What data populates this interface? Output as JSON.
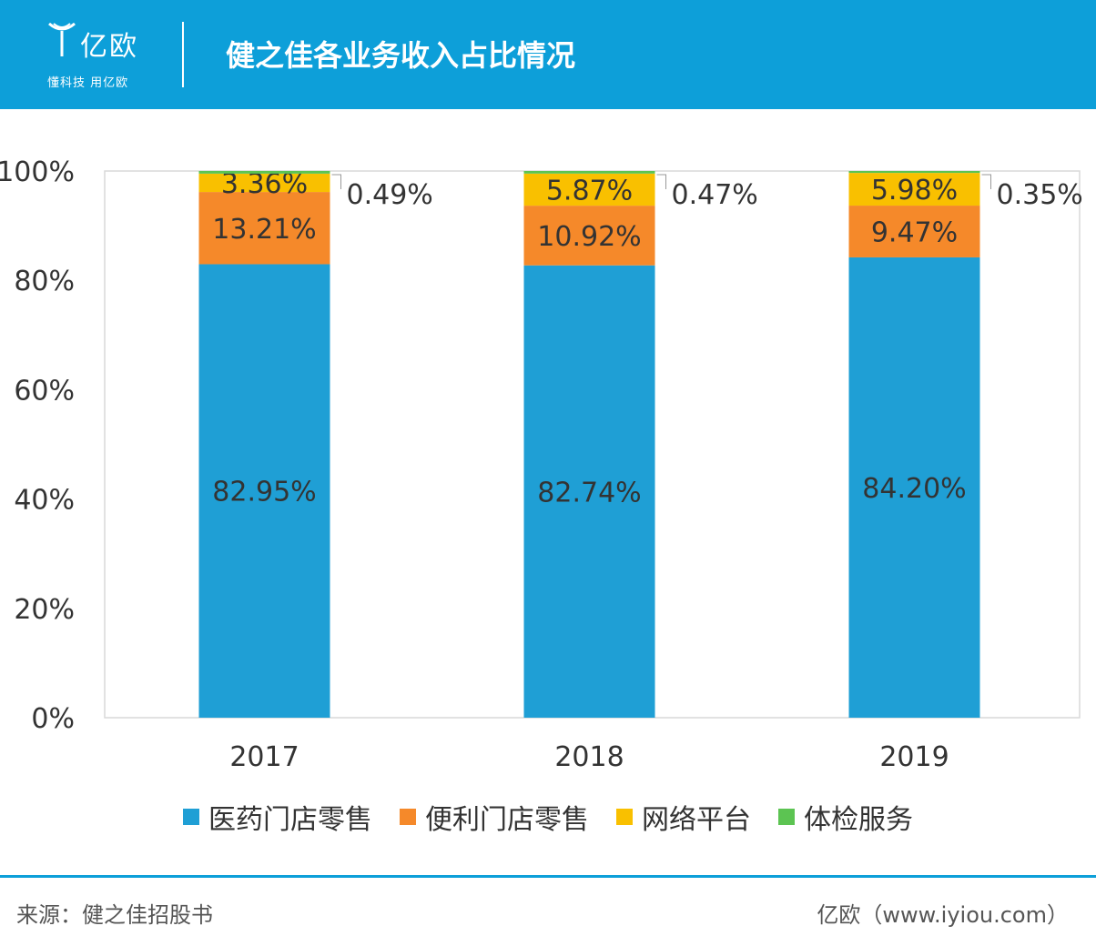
{
  "header": {
    "logo_text": "亿欧",
    "logo_sub": "懂科技 用亿欧",
    "title": "健之佳各业务收入占比情况"
  },
  "chart_data": {
    "type": "bar",
    "stacked": true,
    "title": "健之佳各业务收入占比情况",
    "categories": [
      "2017",
      "2018",
      "2019"
    ],
    "yticks": [
      "0%",
      "20%",
      "40%",
      "60%",
      "80%",
      "100%"
    ],
    "ylim": [
      0,
      100
    ],
    "series": [
      {
        "name": "医药门店零售",
        "color": "#1f9fd5",
        "values": [
          82.95,
          82.74,
          84.2
        ],
        "labels": [
          "82.95%",
          "82.74%",
          "84.20%"
        ]
      },
      {
        "name": "便利门店零售",
        "color": "#f5892a",
        "values": [
          13.21,
          10.92,
          9.47
        ],
        "labels": [
          "13.21%",
          "10.92%",
          "9.47%"
        ]
      },
      {
        "name": "网络平台",
        "color": "#f9c000",
        "values": [
          3.36,
          5.87,
          5.98
        ],
        "labels": [
          "3.36%",
          "5.87%",
          "5.98%"
        ]
      },
      {
        "name": "体检服务",
        "color": "#5cc452",
        "values": [
          0.49,
          0.47,
          0.35
        ],
        "labels": [
          "0.49%",
          "0.47%",
          "0.35%"
        ]
      }
    ],
    "legend_position": "bottom"
  },
  "footer": {
    "source": "来源：健之佳招股书",
    "brand": "亿欧（www.iyiou.com）"
  }
}
